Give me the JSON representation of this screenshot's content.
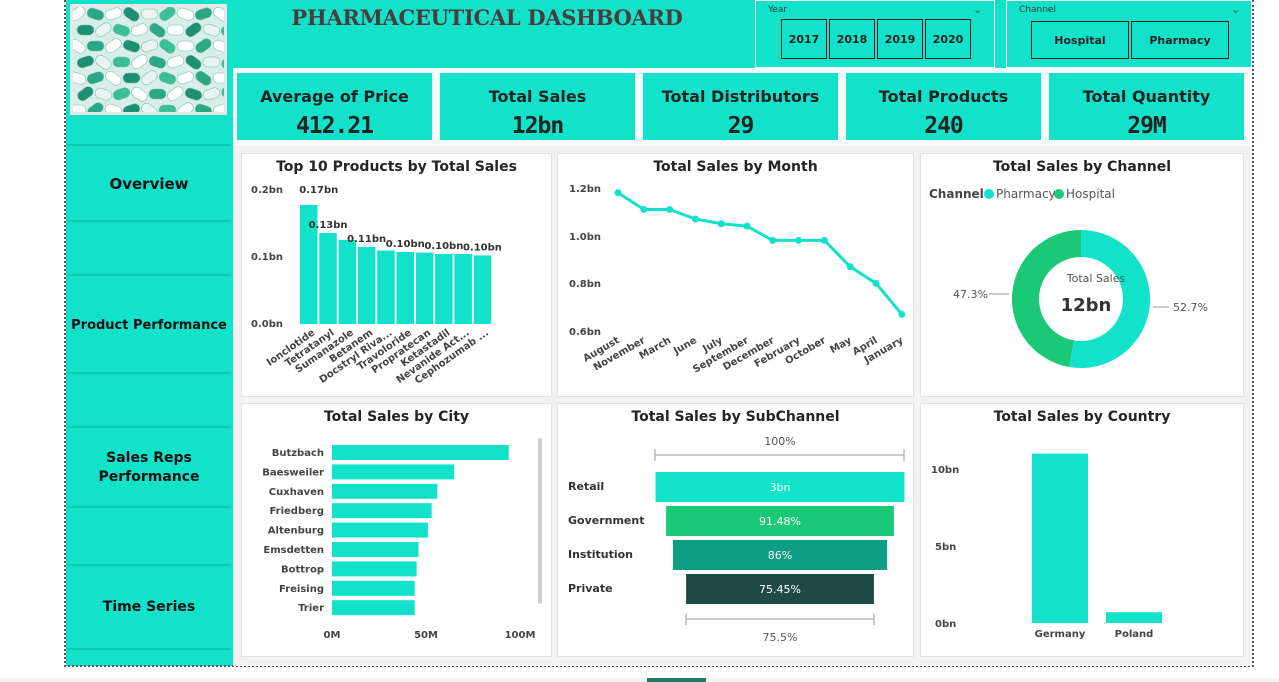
{
  "title": "PHARMACEUTICAL DASHBOARD",
  "colors": {
    "accent": "#13e2cb",
    "dark_green": "#1e8a6e",
    "green": "#1bc878",
    "dark": "#1f4a45"
  },
  "hero_image": {
    "icon": "pills-image"
  },
  "slicers": {
    "year": {
      "label": "Year",
      "options": [
        "2017",
        "2018",
        "2019",
        "2020"
      ]
    },
    "channel": {
      "label": "Channel",
      "options": [
        "Hospital",
        "Pharmacy"
      ]
    }
  },
  "kpis": [
    {
      "label": "Average of Price",
      "value": "412.21"
    },
    {
      "label": "Total Sales",
      "value": "12bn"
    },
    {
      "label": "Total Distributors",
      "value": "29"
    },
    {
      "label": "Total Products",
      "value": "240"
    },
    {
      "label": "Total Quantity",
      "value": "29M"
    }
  ],
  "nav": [
    {
      "label": "Overview"
    },
    {
      "label": "Product Performance"
    },
    {
      "label": "Sales Reps Performance"
    },
    {
      "label": "Time Series"
    }
  ],
  "charts": {
    "top_products": {
      "title": "Top 10 Products by Total Sales",
      "yticks": [
        "0.2bn",
        "0.1bn",
        "0.0bn"
      ],
      "categories": [
        "Ionclotide",
        "Tetratanyl",
        "Sumanazole",
        "Betanem",
        "Docstryl Riva...",
        "Travoloride",
        "Propratecan",
        "Ketastadil",
        "Nevanide Act...",
        "Cephozumab ..."
      ],
      "values": [
        0.17,
        0.13,
        0.12,
        0.11,
        0.105,
        0.103,
        0.102,
        0.1,
        0.1,
        0.098
      ],
      "labels": [
        "0.17bn",
        "0.13bn",
        "0.11bn",
        "0.10bn",
        "0.10bn",
        "0.10bn"
      ],
      "label_index": [
        0,
        1,
        3,
        5,
        7,
        9
      ],
      "ylim": [
        0,
        0.2
      ]
    },
    "sales_by_month": {
      "title": "Total Sales by Month",
      "yticks": [
        "1.2bn",
        "1.0bn",
        "0.8bn",
        "0.6bn"
      ],
      "categories": [
        "August",
        "November",
        "March",
        "June",
        "July",
        "September",
        "December",
        "February",
        "October",
        "May",
        "April",
        "January"
      ],
      "values": [
        1.18,
        1.11,
        1.11,
        1.07,
        1.05,
        1.04,
        0.98,
        0.98,
        0.98,
        0.87,
        0.8,
        0.67
      ],
      "ylim": [
        0.6,
        1.25
      ]
    },
    "sales_by_channel": {
      "title": "Total Sales by Channel",
      "legend_title": "Channel",
      "legend": [
        "Pharmacy",
        "Hospital"
      ],
      "center_label": "Total Sales",
      "center_value": "12bn",
      "slices": [
        {
          "name": "Pharmacy",
          "value": 52.7,
          "label": "52.7%"
        },
        {
          "name": "Hospital",
          "value": 47.3,
          "label": "47.3%"
        }
      ]
    },
    "sales_by_city": {
      "title": "Total Sales by City",
      "categories": [
        "Butzbach",
        "Baesweiler",
        "Cuxhaven",
        "Friedberg",
        "Altenburg",
        "Emsdetten",
        "Bottrop",
        "Freising",
        "Trier"
      ],
      "values": [
        94,
        65,
        56,
        53,
        51,
        46,
        45,
        44,
        44
      ],
      "xticks": [
        "0M",
        "50M",
        "100M"
      ],
      "xlim": [
        0,
        110
      ]
    },
    "sales_by_subchannel": {
      "title": "Total Sales by SubChannel",
      "top_label": "100%",
      "bottom_label": "75.5%",
      "stages": [
        {
          "name": "Retail",
          "label": "3bn",
          "pct": 100
        },
        {
          "name": "Government",
          "label": "91.48%",
          "pct": 91.48
        },
        {
          "name": "Institution",
          "label": "86%",
          "pct": 86
        },
        {
          "name": "Private",
          "label": "75.45%",
          "pct": 75.45
        }
      ]
    },
    "sales_by_country": {
      "title": "Total Sales by Country",
      "yticks": [
        "10bn",
        "5bn",
        "0bn"
      ],
      "categories": [
        "Germany",
        "Poland"
      ],
      "values": [
        11,
        0.7
      ],
      "ylim": [
        0,
        12.5
      ]
    }
  },
  "chart_data": [
    {
      "type": "bar",
      "title": "Top 10 Products by Total Sales",
      "categories": [
        "Ionclotide",
        "Tetratanyl",
        "Sumanazole",
        "Betanem",
        "Docstryl Riva...",
        "Travoloride",
        "Propratecan",
        "Ketastadil",
        "Nevanide Act...",
        "Cephozumab ..."
      ],
      "values": [
        0.17,
        0.13,
        0.12,
        0.11,
        0.105,
        0.103,
        0.102,
        0.1,
        0.1,
        0.098
      ],
      "ylim": [
        0,
        0.2
      ]
    },
    {
      "type": "line",
      "title": "Total Sales by Month",
      "categories": [
        "August",
        "November",
        "March",
        "June",
        "July",
        "September",
        "December",
        "February",
        "October",
        "May",
        "April",
        "January"
      ],
      "values": [
        1.18,
        1.11,
        1.11,
        1.07,
        1.05,
        1.04,
        0.98,
        0.98,
        0.98,
        0.87,
        0.8,
        0.67
      ],
      "ylim": [
        0.6,
        1.25
      ]
    },
    {
      "type": "pie",
      "title": "Total Sales by Channel",
      "categories": [
        "Pharmacy",
        "Hospital"
      ],
      "values": [
        52.7,
        47.3
      ]
    },
    {
      "type": "bar",
      "title": "Total Sales by City",
      "categories": [
        "Butzbach",
        "Baesweiler",
        "Cuxhaven",
        "Friedberg",
        "Altenburg",
        "Emsdetten",
        "Bottrop",
        "Freising",
        "Trier"
      ],
      "values": [
        94,
        65,
        56,
        53,
        51,
        46,
        45,
        44,
        44
      ]
    },
    {
      "type": "bar",
      "title": "Total Sales by SubChannel",
      "categories": [
        "Retail",
        "Government",
        "Institution",
        "Private"
      ],
      "values": [
        100,
        91.48,
        86,
        75.45
      ]
    },
    {
      "type": "bar",
      "title": "Total Sales by Country",
      "categories": [
        "Germany",
        "Poland"
      ],
      "values": [
        11,
        0.7
      ]
    }
  ]
}
